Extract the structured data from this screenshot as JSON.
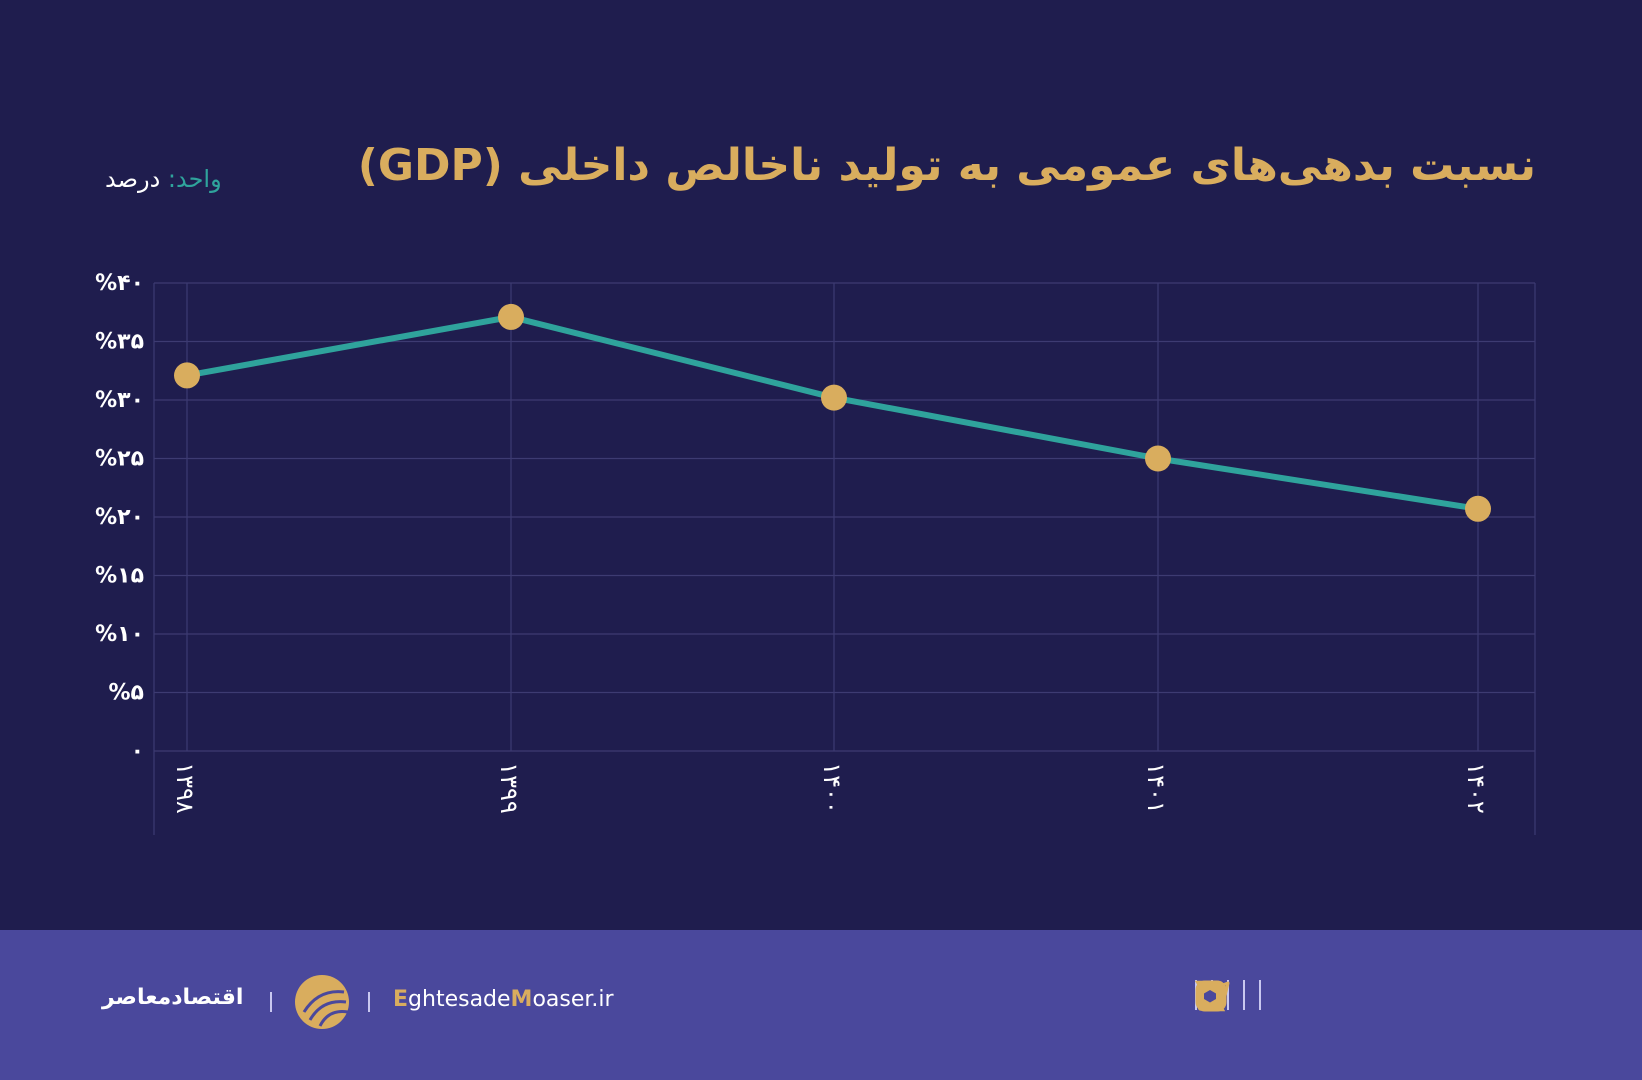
{
  "header": {
    "title": "نسبت بدهی‌های عمومی به تولید ناخالص داخلی (GDP)",
    "unit_label": "واحد:",
    "unit_value": "درصد"
  },
  "chart_data": {
    "type": "line",
    "title": "نسبت بدهی‌های عمومی به تولید ناخالص داخلی (GDP)",
    "categories": [
      "۱۳۹۸",
      "۱۳۹۹",
      "۱۴۰۰",
      "۱۴۰۱",
      "۱۴۰۲"
    ],
    "values": [
      32.1,
      37.1,
      30.2,
      25.0,
      20.7
    ],
    "ylim": [
      0,
      40
    ],
    "yticks": [
      0,
      5,
      10,
      15,
      20,
      25,
      30,
      35,
      40
    ],
    "ytick_labels": [
      "۰",
      "%۵",
      "%۱۰",
      "%۱۵",
      "%۲۰",
      "%۲۵",
      "%۳۰",
      "%۳۵",
      "%۴۰"
    ],
    "grid": true,
    "line_color": "#2fa39c",
    "marker_color": "#d9ad5e"
  },
  "footer": {
    "brand": "اقتصادمعاصر",
    "site_e": "E",
    "site_1": "ghtesade",
    "site_m": "M",
    "site_2": "oaser.ir",
    "icons": [
      "telegram-icon",
      "instagram-icon",
      "x-icon",
      "bale-icon",
      "eitaa-icon",
      "rubika-icon"
    ]
  }
}
